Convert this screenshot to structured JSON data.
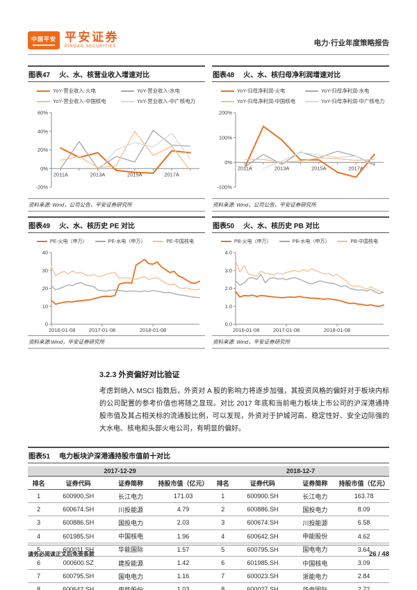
{
  "colors": {
    "fire": "#e8701e",
    "hydro": "#a6a6a6",
    "nuclear": "#f7bd8c",
    "cgn": "#d8d8d8",
    "brand_orange": "#e8611c"
  },
  "header": {
    "badge": "中国平安",
    "brand_cn": "平安证券",
    "brand_en": "PINGAN SECURITIES",
    "report_title": "电力·行业年度策略报告"
  },
  "figures": [
    {
      "tag": "图表47",
      "title": "火、水、核营业收入增速对比",
      "source": "资料来源: Wind，公司公告，平安证券研究所",
      "legend": [
        {
          "label": "YoY-营业收入-火电",
          "color": "fire"
        },
        {
          "label": "YoY-营业收入-水电",
          "color": "hydro"
        },
        {
          "label": "YoY-营业收入-中国核电",
          "color": "nuclear"
        },
        {
          "label": "YoY-营业收入-中广核电力",
          "color": "cgn"
        }
      ],
      "chart_data": {
        "type": "line",
        "pad": true,
        "x_count": 8,
        "categories": [
          "2011A",
          "2012A",
          "2013A",
          "2014A",
          "2015A",
          "2016A",
          "2017A",
          "2018A"
        ],
        "xticks": [
          {
            "i": 0,
            "label": "2011A"
          },
          {
            "i": 2,
            "label": "2013A"
          },
          {
            "i": 4,
            "label": "2015A"
          },
          {
            "i": 6,
            "label": "2017A"
          }
        ],
        "ylim": [
          -20,
          60
        ],
        "axis_at": 0,
        "yticks": [
          -20,
          0,
          20,
          40,
          60
        ],
        "ytick_labels": [
          "-20%",
          "0%",
          "20%",
          "40%",
          "60%"
        ],
        "series": [
          {
            "name": "YoY-营业收入-火电",
            "color": "fire",
            "width": 2,
            "values": [
              22,
              12,
              17,
              -2,
              -4,
              -5,
              19,
              17
            ]
          },
          {
            "name": "YoY-营业收入-水电",
            "color": "hydro",
            "width": 1.3,
            "values": [
              0,
              29,
              0,
              13,
              7,
              41,
              25,
              24
            ]
          },
          {
            "name": "YoY-营业收入-中国核电",
            "color": "nuclear",
            "width": 1.3,
            "values": [
              9,
              13,
              1,
              3,
              40,
              14,
              24,
              -2
            ]
          },
          {
            "name": "YoY-营业收入-中广核电力",
            "color": "cgn",
            "width": 1.3,
            "values": [
              null,
              null,
              -3,
              20,
              28,
              23,
              38,
              10
            ]
          }
        ]
      }
    },
    {
      "tag": "图表48",
      "title": "火、水、核归母净利润增速对比",
      "source": "资料来源: Wind，公司公告，平安证券研究所",
      "legend": [
        {
          "label": "YoY-归母净利润-火电",
          "color": "fire"
        },
        {
          "label": "YoY-归母净利润-水电",
          "color": "hydro"
        },
        {
          "label": "YoY-归母净利润-中国核电",
          "color": "nuclear"
        },
        {
          "label": "YoY-归母净利润-中广核电力",
          "color": "cgn"
        }
      ],
      "chart_data": {
        "type": "line",
        "pad": true,
        "x_count": 8,
        "categories": [
          "2011A",
          "2012A",
          "2013A",
          "2014A",
          "2015A",
          "2016A",
          "2017A",
          "2018A"
        ],
        "xticks": [
          {
            "i": 0,
            "label": "2011A"
          },
          {
            "i": 2,
            "label": "2013A"
          },
          {
            "i": 4,
            "label": "2015A"
          },
          {
            "i": 6,
            "label": "2017A"
          }
        ],
        "ylim": [
          -100,
          200
        ],
        "axis_at": 0,
        "yticks": [
          -100,
          0,
          100,
          200
        ],
        "ytick_labels": [
          "-100%",
          "0%",
          "100%",
          "200%"
        ],
        "series": [
          {
            "name": "YoY-归母净利润-火电",
            "color": "fire",
            "width": 2,
            "values": [
              -20,
              145,
              90,
              10,
              10,
              -40,
              -60,
              32
            ]
          },
          {
            "name": "YoY-归母净利润-水电",
            "color": "hydro",
            "width": 1.3,
            "values": [
              -18,
              32,
              -8,
              42,
              18,
              45,
              25,
              -10
            ]
          },
          {
            "name": "YoY-归母净利润-中国核电",
            "color": "nuclear",
            "width": 1.3,
            "values": [
              12,
              12,
              0,
              5,
              18,
              15,
              8,
              12
            ]
          },
          {
            "name": "YoY-归母净利润-中广核电力",
            "color": "cgn",
            "width": 1.3,
            "values": [
              null,
              -25,
              5,
              40,
              30,
              20,
              25,
              -15
            ]
          }
        ]
      }
    },
    {
      "tag": "图表49",
      "title": "火、水、核历史 PE 对比",
      "source": "资料来源:Wind，平安证券研究所",
      "legend": [
        {
          "label": "PE-火电（申万）",
          "color": "fire"
        },
        {
          "label": "PE-水电（申万）",
          "color": "hydro"
        },
        {
          "label": "PE-中国核电",
          "color": "nuclear"
        }
      ],
      "chart_data": {
        "type": "line",
        "pad": false,
        "x_count": 36,
        "xticks": [
          {
            "i": 0,
            "label": "2016-01-08",
            "a": "start",
            "dx": -4
          },
          {
            "i": 12,
            "label": "2017-01-08"
          },
          {
            "i": 24,
            "label": "2018-01-08"
          }
        ],
        "ylim": [
          0,
          40
        ],
        "axis_at": 0,
        "yticks": [
          0,
          10,
          20,
          30,
          40
        ],
        "ytick_labels": [
          "0",
          "10",
          "20",
          "30",
          "40"
        ],
        "series": [
          {
            "name": "PE-火电（申万）",
            "color": "fire",
            "width": 1.8,
            "values": [
              13.2,
              11.2,
              11.8,
              12.3,
              12.6,
              12.4,
              12.9,
              13.1,
              13.4,
              13.6,
              14.2,
              14.8,
              15.4,
              15.6,
              15.5,
              16.0,
              22.3,
              23.0,
              23.2,
              23.0,
              33.0,
              34.5,
              36.2,
              33.8,
              33.5,
              34.8,
              32.0,
              30.5,
              28.8,
              29.5,
              27.0,
              26.0,
              24.5,
              23.2,
              22.8,
              24.0
            ]
          },
          {
            "name": "PE-水电（申万）",
            "color": "hydro",
            "width": 1.3,
            "values": [
              21.5,
              19.2,
              20.0,
              21.0,
              22.0,
              21.5,
              22.8,
              23.2,
              22.0,
              21.5,
              21.0,
              19.0,
              18.8,
              18.5,
              19.0,
              19.2,
              18.8,
              18.5,
              18.3,
              18.6,
              18.4,
              18.2,
              18.6,
              18.3,
              18.8,
              18.5,
              18.0,
              17.5,
              17.8,
              17.0,
              16.5,
              16.2,
              15.8,
              15.3,
              15.0,
              14.9
            ]
          },
          {
            "name": "PE-中国核电",
            "color": "nuclear",
            "width": 1.3,
            "values": [
              32.0,
              27.0,
              28.5,
              29.5,
              28.0,
              29.8,
              28.5,
              29.0,
              27.5,
              27.0,
              27.8,
              26.5,
              27.0,
              28.0,
              28.5,
              29.0,
              25.5,
              26.0,
              25.8,
              25.5,
              25.0,
              26.0,
              26.5,
              25.0,
              25.5,
              26.0,
              24.5,
              23.0,
              22.0,
              22.5,
              20.5,
              20.0,
              20.3,
              19.5,
              19.2,
              19.6
            ]
          }
        ]
      }
    },
    {
      "tag": "图表50",
      "title": "火、水、核历史 PB 对比",
      "source": "资料来源: Wind，平安证券研究所",
      "legend": [
        {
          "label": "PB-火电（申万）",
          "color": "fire"
        },
        {
          "label": "PB-水电（申万）",
          "color": "hydro"
        },
        {
          "label": "PB-中国核电",
          "color": "nuclear"
        }
      ],
      "chart_data": {
        "type": "line",
        "pad": false,
        "x_count": 36,
        "xticks": [
          {
            "i": 0,
            "label": "2016-01-08",
            "a": "start",
            "dx": -4
          },
          {
            "i": 12,
            "label": "2017-01-08"
          },
          {
            "i": 24,
            "label": "2018-01-08"
          }
        ],
        "ylim": [
          0,
          4
        ],
        "axis_at": 0,
        "yticks": [
          0,
          1,
          2,
          3,
          4
        ],
        "ytick_labels": [
          "0.0",
          "1.0",
          "2.0",
          "3.0",
          "4.0"
        ],
        "series": [
          {
            "name": "PB-火电（申万）",
            "color": "fire",
            "width": 1.8,
            "values": [
              1.82,
              1.52,
              1.6,
              1.58,
              1.62,
              1.55,
              1.6,
              1.58,
              1.55,
              1.52,
              1.5,
              1.48,
              1.5,
              1.52,
              1.5,
              1.55,
              1.5,
              1.48,
              1.45,
              1.45,
              1.42,
              1.4,
              1.42,
              1.38,
              1.35,
              1.3,
              1.22,
              1.15,
              1.18,
              1.12,
              1.1,
              1.05,
              1.08,
              1.02,
              1.0,
              1.07
            ]
          },
          {
            "name": "PB-水电（申万）",
            "color": "hydro",
            "width": 1.3,
            "values": [
              2.42,
              2.18,
              2.3,
              2.55,
              2.6,
              2.5,
              2.78,
              2.3,
              2.55,
              2.6,
              2.52,
              2.55,
              2.48,
              2.55,
              2.6,
              2.52,
              2.42,
              2.3,
              2.25,
              2.35,
              2.42,
              2.35,
              2.3,
              2.28,
              2.2,
              2.1,
              2.15,
              2.0,
              1.95,
              1.9,
              1.92,
              1.85,
              1.95,
              1.8,
              1.72,
              1.78
            ]
          },
          {
            "name": "PB-中国核电",
            "color": "nuclear",
            "width": 1.3,
            "values": [
              3.52,
              2.92,
              3.28,
              2.8,
              2.75,
              2.68,
              2.95,
              2.85,
              2.8,
              2.75,
              2.85,
              2.8,
              2.88,
              2.95,
              3.0,
              2.92,
              3.05,
              2.95,
              3.1,
              2.98,
              2.9,
              2.8,
              2.85,
              2.7,
              2.78,
              2.6,
              2.45,
              2.2,
              2.1,
              2.15,
              2.05,
              1.95,
              2.1,
              1.95,
              1.85,
              1.8
            ]
          }
        ]
      }
    }
  ],
  "section": {
    "heading": "3.2.3 外资偏好对比验证",
    "paragraph": "考虑到纳入 MSCI 指数后，外资对 A 股的影响力将逐步加强，其投资风格的偏好对于板块内标的公司配置的参考价值也将随之显现。对比 2017 年底和当前电力板块上市公司的沪深港通持股市值及其占相关标的流通股比例，可以发现，外资对于护城河高、稳定性好、安全边际强的大水电、核电和头部火电公司，有明显的偏好。"
  },
  "table51": {
    "tag": "图表51",
    "title": "电力板块沪深港通持股市值前十对比",
    "group_headers": [
      "2017-12-29",
      "2018-12-7"
    ],
    "col_headers": [
      "排名",
      "证券代码",
      "证券简称",
      "持股市值（亿元）",
      "排名",
      "证券代码",
      "证券简称",
      "持股市值（亿元）"
    ],
    "rows": [
      [
        "1",
        "600900.SH",
        "长江电力",
        "171.03",
        "1",
        "600900.SH",
        "长江电力",
        "163.78"
      ],
      [
        "2",
        "600674.SH",
        "川投能源",
        "4.79",
        "2",
        "600886.SH",
        "国投电力",
        "8.09"
      ],
      [
        "3",
        "600886.SH",
        "国投电力",
        "2.03",
        "3",
        "600674.SH",
        "川投能源",
        "6.58"
      ],
      [
        "4",
        "601985.SH",
        "中国核电",
        "1.96",
        "4",
        "600642.SH",
        "申能股份",
        "4.62"
      ],
      [
        "5",
        "600011.SH",
        "华能国际",
        "1.57",
        "5",
        "600795.SH",
        "国电电力",
        "3.64"
      ],
      [
        "6",
        "000600.SZ",
        "建投能源",
        "1.42",
        "6",
        "601985.SH",
        "中国核电",
        "3.09"
      ],
      [
        "7",
        "600795.SH",
        "国电电力",
        "1.16",
        "7",
        "600023.SH",
        "浙能电力",
        "2.84"
      ],
      [
        "8",
        "600642.SH",
        "申能股份",
        "1.03",
        "8",
        "600027.SH",
        "华电国际",
        "2.72"
      ]
    ]
  },
  "footer": {
    "disclaimer": "请务必阅读正文后免责条款",
    "page": "26 / 48"
  }
}
